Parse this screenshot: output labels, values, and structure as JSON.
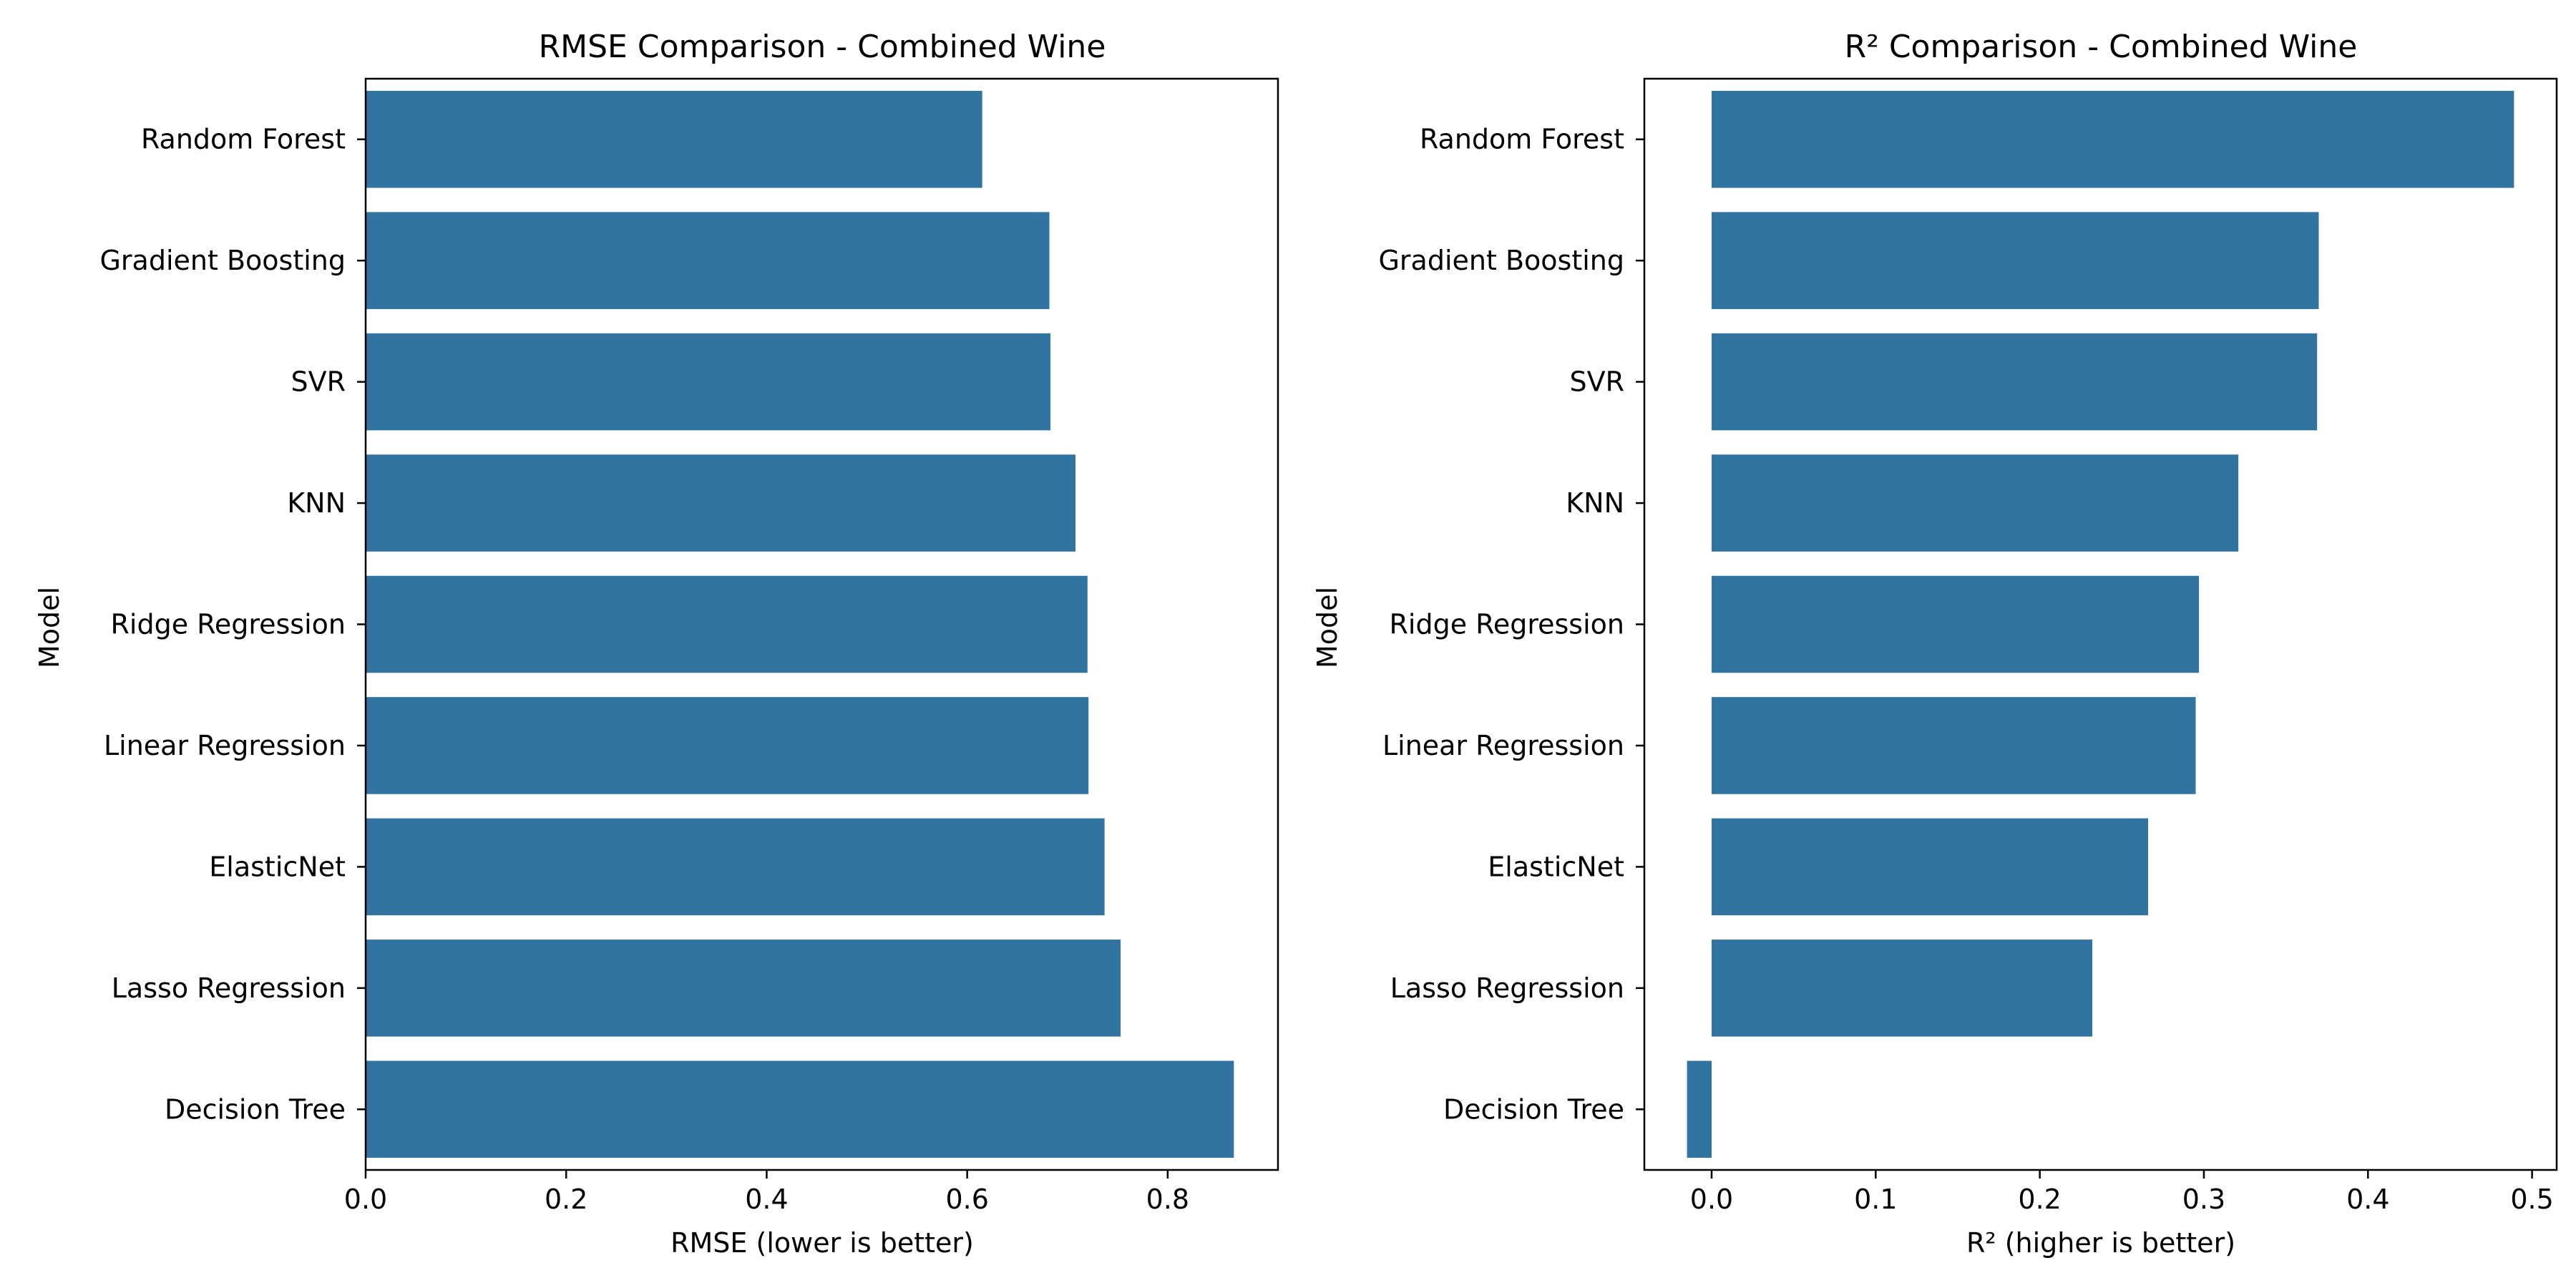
{
  "chart_data": [
    {
      "type": "bar",
      "orientation": "horizontal",
      "title": "RMSE Comparison - Combined Wine",
      "xlabel": "RMSE (lower is better)",
      "ylabel": "Model",
      "categories": [
        "Random Forest",
        "Gradient Boosting",
        "SVR",
        "KNN",
        "Ridge Regression",
        "Linear Regression",
        "ElasticNet",
        "Lasso Regression",
        "Decision Tree"
      ],
      "values": [
        0.615,
        0.682,
        0.683,
        0.708,
        0.72,
        0.721,
        0.737,
        0.753,
        0.866
      ],
      "xlim": [
        0.0,
        0.91
      ],
      "xticks": [
        0.0,
        0.2,
        0.4,
        0.6,
        0.8
      ],
      "xtick_labels": [
        "0.0",
        "0.2",
        "0.4",
        "0.6",
        "0.8"
      ],
      "bar_color": "#3274a1",
      "grid": false
    },
    {
      "type": "bar",
      "orientation": "horizontal",
      "title": "R² Comparison - Combined Wine",
      "xlabel": "R² (higher is better)",
      "ylabel": "Model",
      "categories": [
        "Random Forest",
        "Gradient Boosting",
        "SVR",
        "KNN",
        "Ridge Regression",
        "Linear Regression",
        "ElasticNet",
        "Lasso Regression",
        "Decision Tree"
      ],
      "values": [
        0.489,
        0.37,
        0.369,
        0.321,
        0.297,
        0.295,
        0.266,
        0.232,
        -0.015
      ],
      "xlim": [
        -0.041,
        0.515
      ],
      "xticks": [
        0.0,
        0.1,
        0.2,
        0.3,
        0.4,
        0.5
      ],
      "xtick_labels": [
        "0.0",
        "0.1",
        "0.2",
        "0.3",
        "0.4",
        "0.5"
      ],
      "bar_color": "#3274a1",
      "grid": false
    }
  ]
}
